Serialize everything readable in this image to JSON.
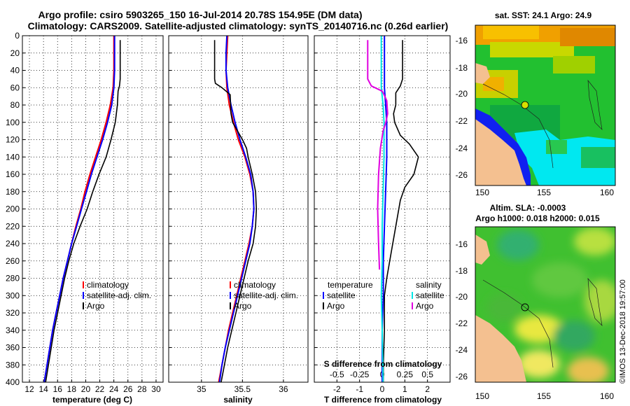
{
  "header": {
    "title_line1": "Argo profile: csiro 5903265_150 16-Jul-2014 20.78S 154.95E (DM data)",
    "title_line2": "Climatology: CARS2009. Satellite-adjusted climatology: synTS_20140716.nc (0.26d earlier)"
  },
  "colors": {
    "climatology": "#ff0000",
    "satellite": "#0000ff",
    "argo": "#000000",
    "t_satellite": "#0000ff",
    "s_satellite": "#00e5e5",
    "s_argo": "#e000e0",
    "land": "#f4c090"
  },
  "depth_axis": {
    "min": 0,
    "max": 400,
    "ticks": [
      "0",
      "20",
      "40",
      "60",
      "80",
      "100",
      "120",
      "140",
      "160",
      "180",
      "200",
      "220",
      "240",
      "260",
      "280",
      "300",
      "320",
      "340",
      "360",
      "380",
      "400"
    ]
  },
  "chart_data": [
    {
      "type": "line",
      "id": "temperature",
      "xlabel": "temperature (deg C)",
      "xlim": [
        11,
        31
      ],
      "xticks": [
        12,
        14,
        16,
        18,
        20,
        22,
        24,
        26,
        28,
        30
      ],
      "ylim": [
        400,
        0
      ],
      "legend": [
        "climatology",
        "satellite-adj. clim.",
        "Argo"
      ],
      "series": [
        {
          "name": "climatology",
          "color_key": "climatology",
          "points": [
            [
              24.0,
              0
            ],
            [
              24.0,
              40
            ],
            [
              23.9,
              60
            ],
            [
              23.5,
              80
            ],
            [
              22.9,
              100
            ],
            [
              22.2,
              120
            ],
            [
              21.4,
              140
            ],
            [
              20.6,
              160
            ],
            [
              19.9,
              180
            ],
            [
              19.3,
              200
            ],
            [
              18.6,
              220
            ],
            [
              18.0,
              240
            ],
            [
              17.4,
              260
            ],
            [
              16.8,
              280
            ],
            [
              16.3,
              300
            ],
            [
              15.8,
              320
            ],
            [
              15.3,
              340
            ],
            [
              14.9,
              360
            ],
            [
              14.5,
              380
            ],
            [
              14.1,
              400
            ]
          ]
        },
        {
          "name": "satellite-adj. clim.",
          "color_key": "satellite",
          "points": [
            [
              24.1,
              0
            ],
            [
              24.1,
              40
            ],
            [
              24.0,
              60
            ],
            [
              23.7,
              80
            ],
            [
              23.1,
              100
            ],
            [
              22.4,
              120
            ],
            [
              21.6,
              140
            ],
            [
              20.8,
              160
            ],
            [
              20.1,
              180
            ],
            [
              19.4,
              200
            ],
            [
              18.7,
              220
            ],
            [
              18.0,
              240
            ],
            [
              17.4,
              260
            ],
            [
              16.8,
              280
            ],
            [
              16.3,
              300
            ],
            [
              15.8,
              320
            ],
            [
              15.3,
              340
            ],
            [
              14.9,
              360
            ],
            [
              14.5,
              380
            ],
            [
              14.1,
              400
            ]
          ]
        },
        {
          "name": "Argo",
          "color_key": "argo",
          "points": [
            [
              24.9,
              5
            ],
            [
              24.9,
              50
            ],
            [
              24.8,
              58
            ],
            [
              24.6,
              64
            ],
            [
              24.5,
              80
            ],
            [
              24.2,
              100
            ],
            [
              23.6,
              120
            ],
            [
              22.9,
              140
            ],
            [
              21.9,
              160
            ],
            [
              21.0,
              180
            ],
            [
              20.2,
              200
            ],
            [
              19.2,
              220
            ],
            [
              18.3,
              240
            ],
            [
              17.6,
              260
            ],
            [
              17.0,
              280
            ],
            [
              16.5,
              300
            ],
            [
              16.0,
              320
            ],
            [
              15.5,
              340
            ],
            [
              15.1,
              360
            ],
            [
              14.7,
              380
            ],
            [
              14.3,
              400
            ]
          ]
        }
      ]
    },
    {
      "type": "line",
      "id": "salinity",
      "xlabel": "salinity",
      "xlim": [
        34.6,
        36.3
      ],
      "xticks": [
        35,
        35.5,
        36
      ],
      "xticklabels": [
        "35",
        "35.5",
        "36"
      ],
      "ylim": [
        400,
        0
      ],
      "legend": [
        "climatology",
        "satellite-adj. clim.",
        "Argo"
      ],
      "series": [
        {
          "name": "climatology",
          "color_key": "climatology",
          "points": [
            [
              35.32,
              0
            ],
            [
              35.31,
              20
            ],
            [
              35.3,
              40
            ],
            [
              35.31,
              60
            ],
            [
              35.34,
              80
            ],
            [
              35.39,
              100
            ],
            [
              35.45,
              120
            ],
            [
              35.53,
              140
            ],
            [
              35.59,
              160
            ],
            [
              35.63,
              180
            ],
            [
              35.64,
              200
            ],
            [
              35.62,
              220
            ],
            [
              35.58,
              240
            ],
            [
              35.53,
              260
            ],
            [
              35.48,
              280
            ],
            [
              35.43,
              300
            ],
            [
              35.38,
              320
            ],
            [
              35.33,
              340
            ],
            [
              35.29,
              360
            ],
            [
              35.25,
              380
            ],
            [
              35.21,
              400
            ]
          ]
        },
        {
          "name": "satellite-adj. clim.",
          "color_key": "satellite",
          "points": [
            [
              35.31,
              0
            ],
            [
              35.3,
              20
            ],
            [
              35.3,
              40
            ],
            [
              35.32,
              60
            ],
            [
              35.36,
              80
            ],
            [
              35.41,
              100
            ],
            [
              35.47,
              120
            ],
            [
              35.54,
              140
            ],
            [
              35.6,
              160
            ],
            [
              35.63,
              180
            ],
            [
              35.64,
              200
            ],
            [
              35.62,
              220
            ],
            [
              35.59,
              240
            ],
            [
              35.54,
              260
            ],
            [
              35.49,
              280
            ],
            [
              35.44,
              300
            ],
            [
              35.39,
              320
            ],
            [
              35.34,
              340
            ],
            [
              35.29,
              360
            ],
            [
              35.25,
              380
            ],
            [
              35.22,
              400
            ]
          ]
        },
        {
          "name": "Argo",
          "color_key": "argo",
          "points": [
            [
              35.16,
              5
            ],
            [
              35.16,
              50
            ],
            [
              35.17,
              55
            ],
            [
              35.25,
              60
            ],
            [
              35.35,
              68
            ],
            [
              35.36,
              90
            ],
            [
              35.38,
              100
            ],
            [
              35.44,
              110
            ],
            [
              35.5,
              120
            ],
            [
              35.55,
              130
            ],
            [
              35.57,
              140
            ],
            [
              35.62,
              160
            ],
            [
              35.66,
              180
            ],
            [
              35.67,
              200
            ],
            [
              35.66,
              220
            ],
            [
              35.63,
              240
            ],
            [
              35.57,
              260
            ],
            [
              35.52,
              280
            ],
            [
              35.47,
              300
            ],
            [
              35.42,
              320
            ],
            [
              35.37,
              340
            ],
            [
              35.32,
              360
            ],
            [
              35.28,
              380
            ],
            [
              35.24,
              400
            ]
          ]
        }
      ]
    },
    {
      "type": "line",
      "id": "differences",
      "xlabel": "T difference from climatology",
      "xlabel_top": "S difference from climatology",
      "xlim": [
        -3,
        3
      ],
      "xticks": [
        -2,
        -1,
        0,
        1,
        2
      ],
      "xticklabels": [
        "-2",
        "-1",
        "0",
        "1",
        "2"
      ],
      "s_xticklabels": [
        "-0.5",
        "-0.25",
        "0",
        "0.25",
        "0.5"
      ],
      "s_xlim": [
        -0.75,
        0.75
      ],
      "ylim": [
        400,
        0
      ],
      "legend_left_title": "temperature",
      "legend_right_title": "salinity",
      "legend_left": [
        "satellite",
        "Argo"
      ],
      "legend_right": [
        "satellite",
        "Argo"
      ],
      "series": [
        {
          "name": "T satellite",
          "color_key": "t_satellite",
          "scale": "T",
          "points": [
            [
              0.1,
              0
            ],
            [
              0.1,
              60
            ],
            [
              0.15,
              80
            ],
            [
              0.2,
              100
            ],
            [
              0.2,
              140
            ],
            [
              0.15,
              180
            ],
            [
              0.1,
              220
            ],
            [
              0.05,
              260
            ],
            [
              0.05,
              300
            ],
            [
              0.0,
              340
            ],
            [
              0.0,
              400
            ]
          ]
        },
        {
          "name": "T Argo",
          "color_key": "argo",
          "scale": "T",
          "points": [
            [
              0.9,
              5
            ],
            [
              0.9,
              50
            ],
            [
              0.8,
              58
            ],
            [
              0.6,
              66
            ],
            [
              0.6,
              80
            ],
            [
              0.5,
              90
            ],
            [
              0.55,
              100
            ],
            [
              0.8,
              115
            ],
            [
              1.2,
              125
            ],
            [
              1.6,
              140
            ],
            [
              1.4,
              160
            ],
            [
              1.0,
              175
            ],
            [
              0.8,
              190
            ],
            [
              0.6,
              220
            ],
            [
              0.4,
              250
            ],
            [
              0.2,
              280
            ],
            [
              0.1,
              300
            ],
            [
              0.1,
              340
            ],
            [
              0.05,
              380
            ],
            [
              0.05,
              400
            ]
          ]
        },
        {
          "name": "S satellite",
          "color_key": "s_satellite",
          "scale": "S",
          "points": [
            [
              -0.01,
              0
            ],
            [
              -0.01,
              60
            ],
            [
              0.01,
              80
            ],
            [
              0.02,
              100
            ],
            [
              0.02,
              140
            ],
            [
              0.01,
              180
            ],
            [
              0.0,
              220
            ],
            [
              0.0,
              260
            ],
            [
              -0.01,
              300
            ],
            [
              0.0,
              340
            ],
            [
              0.01,
              400
            ]
          ]
        },
        {
          "name": "S Argo",
          "color_key": "s_argo",
          "scale": "S",
          "points": [
            [
              -0.16,
              5
            ],
            [
              -0.16,
              50
            ],
            [
              -0.12,
              58
            ],
            [
              0.0,
              64
            ],
            [
              0.02,
              68
            ],
            [
              0.05,
              75
            ],
            [
              0.06,
              90
            ],
            [
              0.04,
              100
            ],
            [
              0.01,
              110
            ],
            [
              -0.02,
              130
            ],
            [
              -0.04,
              160
            ],
            [
              -0.05,
              200
            ],
            [
              -0.04,
              240
            ],
            [
              -0.03,
              270
            ]
          ]
        }
      ]
    }
  ],
  "maps": {
    "sst": {
      "title": "sat. SST: 24.1 Argo: 24.9",
      "xticks": [
        "150",
        "155",
        "160"
      ],
      "yticks": [
        "-16",
        "-18",
        "-20",
        "-22",
        "-24",
        "-26"
      ]
    },
    "sla": {
      "title_line1": "Altim. SLA: -0.0003",
      "title_line2": "Argo h1000: 0.018 h2000: 0.015",
      "xticks": [
        "150",
        "155",
        "160"
      ],
      "yticks": [
        "-16",
        "-18",
        "-20",
        "-22",
        "-24",
        "-26"
      ]
    }
  },
  "stamp": "©IMOS 13-Dec-2018 19:57:00"
}
